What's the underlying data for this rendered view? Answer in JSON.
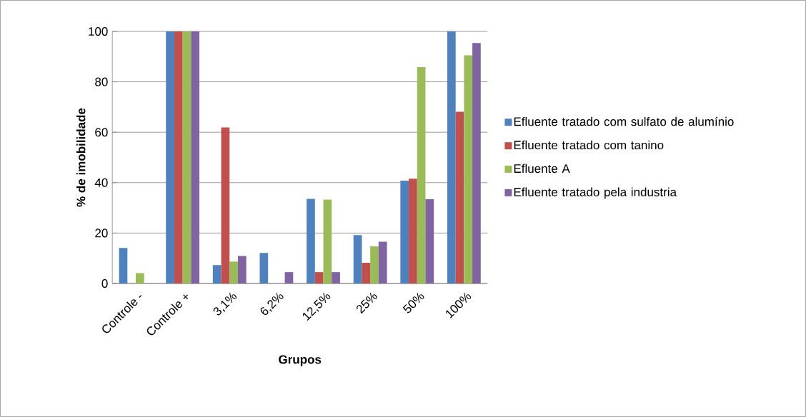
{
  "chart_data": {
    "type": "bar",
    "xlabel": "Grupos",
    "ylabel": "% de imobilidade",
    "categories": [
      "Controle -",
      "Controle +",
      "3,1%",
      "6,2%",
      "12,5%",
      "25%",
      "50%",
      "100%"
    ],
    "series": [
      {
        "name": "Efluente tratado com sulfato de alumínio",
        "color": "#4f81bd",
        "values": [
          14.1,
          100,
          7.3,
          12.1,
          33.6,
          19.2,
          40.8,
          100
        ]
      },
      {
        "name": "Efluente tratado com tanino",
        "color": "#c0504d",
        "values": [
          0,
          100,
          61.9,
          0,
          4.5,
          8.2,
          41.6,
          68.1
        ]
      },
      {
        "name": "Efluente A",
        "color": "#9bbb59",
        "values": [
          4.1,
          100,
          8.7,
          0,
          33.3,
          14.7,
          85.8,
          90.5
        ]
      },
      {
        "name": "Efluente tratado pela industria",
        "color": "#8064a2",
        "values": [
          0,
          100,
          10.9,
          4.5,
          4.5,
          16.6,
          33.4,
          95.4
        ]
      }
    ],
    "ylim": [
      0,
      100
    ],
    "yticks": [
      0,
      20,
      40,
      60,
      80,
      100
    ],
    "grid": "y",
    "legend": "right"
  }
}
